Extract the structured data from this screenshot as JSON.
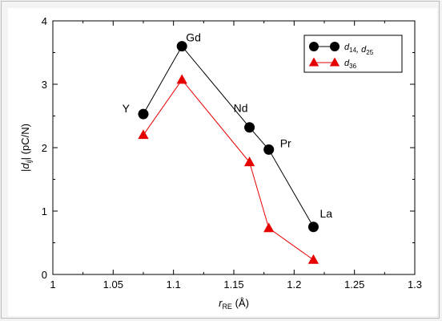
{
  "chart_data": {
    "type": "line",
    "xlabel": "r_RE (Å)",
    "ylabel": "|d_ij| (pC/N)",
    "xlim": [
      1.0,
      1.3
    ],
    "ylim": [
      0,
      4
    ],
    "xticks": [
      "1",
      "1.05",
      "1.1",
      "1.15",
      "1.2",
      "1.25",
      "1.3"
    ],
    "yticks": [
      "0",
      "1",
      "2",
      "3",
      "4"
    ],
    "legend_position": "top-right",
    "series": [
      {
        "name": "d14, d25",
        "color": "#000000",
        "marker": "circle",
        "x": [
          1.075,
          1.107,
          1.163,
          1.179,
          1.216
        ],
        "y": [
          2.53,
          3.6,
          2.32,
          1.97,
          0.75
        ],
        "point_labels": [
          "Y",
          "Gd",
          "Nd",
          "Pr",
          "La"
        ]
      },
      {
        "name": "d36",
        "color": "#e60000",
        "marker": "triangle",
        "x": [
          1.075,
          1.107,
          1.163,
          1.179,
          1.216
        ],
        "y": [
          2.2,
          3.07,
          1.77,
          0.73,
          0.23
        ]
      }
    ]
  }
}
